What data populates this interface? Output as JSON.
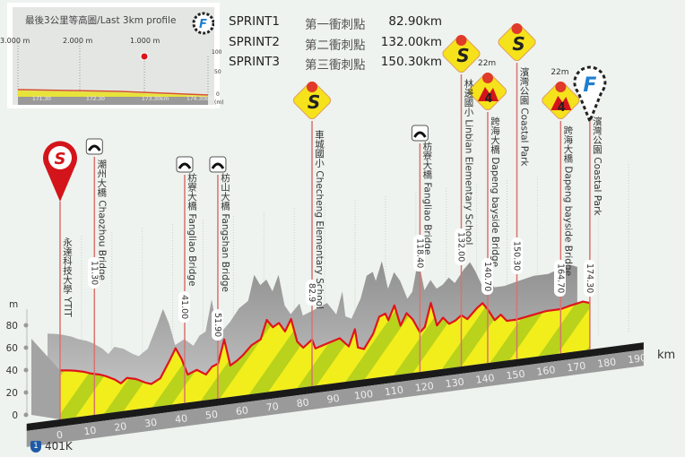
{
  "inset": {
    "title": "最後3公里等高圖/Last 3km profile",
    "distance_labels": [
      "3.000 m",
      "2.000 m",
      "1.000 m"
    ],
    "km_labels": [
      "171.30",
      "172.30",
      "173.30km",
      "174.30km"
    ],
    "scale_labels": [
      "100",
      "50",
      "0",
      "(m)"
    ]
  },
  "sprints": [
    {
      "name": "SPRINT1",
      "cn": "第一衝刺點",
      "km": "82.90km"
    },
    {
      "name": "SPRINT2",
      "cn": "第二衝刺點",
      "km": "132.00km"
    },
    {
      "name": "SPRINT3",
      "cn": "第三衝刺點",
      "km": "150.30km"
    }
  ],
  "route": {
    "shield": "1",
    "label": "401K"
  },
  "colors": {
    "profile_line": "#e0141b",
    "fill_yellow": "#f2ee1c",
    "fill_green": "#b9d21c",
    "shadow": "#9c9c9c",
    "base": "#1a1a1a",
    "axis_band": "#9a9a9a",
    "marker_line": "#d9736f"
  },
  "chart_data": {
    "type": "area",
    "xlabel": "km",
    "ylabel": "m",
    "xlim": [
      0,
      190
    ],
    "ylim": [
      0,
      80
    ],
    "x_ticks": [
      0,
      10,
      20,
      30,
      40,
      50,
      60,
      70,
      80,
      90,
      100,
      110,
      120,
      130,
      140,
      150,
      160,
      170,
      180,
      190
    ],
    "y_ticks": [
      0,
      20,
      40,
      60,
      80
    ],
    "grid": true,
    "profile": [
      [
        0,
        42
      ],
      [
        3,
        41
      ],
      [
        5,
        40
      ],
      [
        8,
        38
      ],
      [
        10,
        36
      ],
      [
        13,
        34
      ],
      [
        15,
        32
      ],
      [
        18,
        28
      ],
      [
        20,
        24
      ],
      [
        22,
        28
      ],
      [
        25,
        26
      ],
      [
        28,
        22
      ],
      [
        30,
        20
      ],
      [
        33,
        24
      ],
      [
        36,
        38
      ],
      [
        38,
        48
      ],
      [
        40,
        38
      ],
      [
        42,
        24
      ],
      [
        45,
        27
      ],
      [
        48,
        22
      ],
      [
        50,
        28
      ],
      [
        52,
        30
      ],
      [
        54,
        50
      ],
      [
        56,
        27
      ],
      [
        58,
        30
      ],
      [
        60,
        34
      ],
      [
        63,
        42
      ],
      [
        66,
        46
      ],
      [
        68,
        62
      ],
      [
        70,
        55
      ],
      [
        72,
        58
      ],
      [
        74,
        50
      ],
      [
        76,
        60
      ],
      [
        78,
        40
      ],
      [
        80,
        34
      ],
      [
        82.9,
        40
      ],
      [
        84,
        32
      ],
      [
        88,
        35
      ],
      [
        92,
        38
      ],
      [
        95,
        30
      ],
      [
        97,
        44
      ],
      [
        98,
        28
      ],
      [
        100,
        26
      ],
      [
        103,
        38
      ],
      [
        105,
        52
      ],
      [
        107,
        54
      ],
      [
        108,
        48
      ],
      [
        110,
        60
      ],
      [
        112,
        42
      ],
      [
        114,
        52
      ],
      [
        116,
        46
      ],
      [
        118.4,
        34
      ],
      [
        120,
        38
      ],
      [
        122,
        58
      ],
      [
        124,
        38
      ],
      [
        126,
        44
      ],
      [
        128,
        38
      ],
      [
        130,
        40
      ],
      [
        132,
        44
      ],
      [
        134,
        40
      ],
      [
        137,
        48
      ],
      [
        139,
        52
      ],
      [
        140.7,
        46
      ],
      [
        143,
        36
      ],
      [
        145,
        40
      ],
      [
        147,
        34
      ],
      [
        150.3,
        34
      ],
      [
        155,
        36
      ],
      [
        160,
        38
      ],
      [
        164.7,
        38
      ],
      [
        168,
        40
      ],
      [
        172,
        42
      ],
      [
        174.3,
        40
      ]
    ],
    "markers": [
      {
        "km": 0,
        "type": "start",
        "icon": "start-pin-icon",
        "name": "永達科技大學 YTIT",
        "value": ""
      },
      {
        "km": 11.3,
        "type": "bridge",
        "icon": "bridge-icon",
        "name": "潮州大橋 Chaozhou Bridge",
        "value": "11.30"
      },
      {
        "km": 41.0,
        "type": "bridge",
        "icon": "bridge-icon",
        "name": "枋寮大橋 Fangliao Bridge",
        "value": "41.00"
      },
      {
        "km": 51.9,
        "type": "bridge",
        "icon": "bridge-icon",
        "name": "枋山大橋 Fangshan Bridge",
        "value": "51.90"
      },
      {
        "km": 82.9,
        "type": "sprint",
        "icon": "sprint-icon",
        "name": "車城國小 Checheng Elementary School",
        "value": "82.9"
      },
      {
        "km": 118.4,
        "type": "bridge",
        "icon": "bridge-icon",
        "name": "枋寮大橋 Fangliao Bridge",
        "value": "118.40"
      },
      {
        "km": 132.0,
        "type": "sprint",
        "icon": "sprint-icon",
        "name": "林邊國小 Linbian Elementary School",
        "value": "132.00"
      },
      {
        "km": 140.7,
        "type": "kom",
        "icon": "kom-cat4-icon",
        "name": "跨海大橋 Dapeng bayside Bridge",
        "value": "140.70",
        "height": "22m"
      },
      {
        "km": 150.3,
        "type": "sprint",
        "icon": "sprint-icon",
        "name": "濱灣公園 Coastal Park",
        "value": "150.30"
      },
      {
        "km": 164.7,
        "type": "kom",
        "icon": "kom-cat4-icon",
        "name": "跨海大橋 Dapeng bayside Bridge",
        "value": "164.70",
        "height": "22m"
      },
      {
        "km": 174.3,
        "type": "finish",
        "icon": "finish-pin-icon",
        "name": "濱灣公園 Coastal Park",
        "value": "174.30"
      }
    ]
  }
}
